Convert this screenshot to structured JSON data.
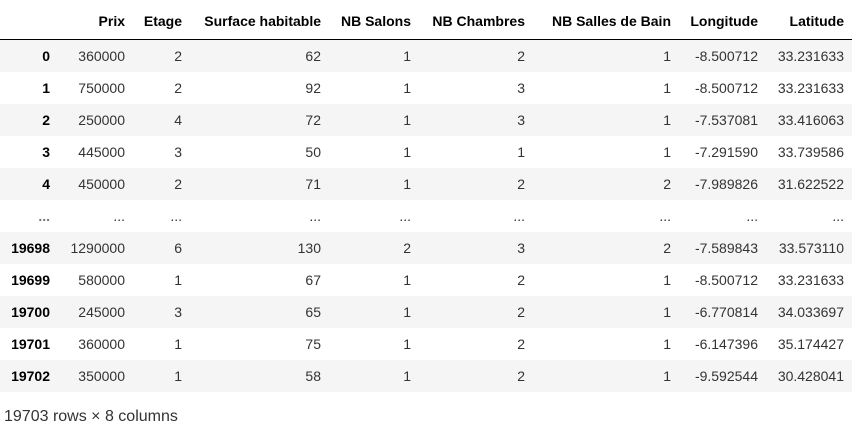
{
  "table": {
    "columns": [
      "",
      "Prix",
      "Etage",
      "Surface habitable",
      "NB Salons",
      "NB Chambres",
      "NB Salles de Bain",
      "Longitude",
      "Latitude"
    ],
    "rows": [
      [
        "0",
        "360000",
        "2",
        "62",
        "1",
        "2",
        "1",
        "-8.500712",
        "33.231633"
      ],
      [
        "1",
        "750000",
        "2",
        "92",
        "1",
        "3",
        "1",
        "-8.500712",
        "33.231633"
      ],
      [
        "2",
        "250000",
        "4",
        "72",
        "1",
        "3",
        "1",
        "-7.537081",
        "33.416063"
      ],
      [
        "3",
        "445000",
        "3",
        "50",
        "1",
        "1",
        "1",
        "-7.291590",
        "33.739586"
      ],
      [
        "4",
        "450000",
        "2",
        "71",
        "1",
        "2",
        "2",
        "-7.989826",
        "31.622522"
      ],
      [
        "...",
        "...",
        "...",
        "...",
        "...",
        "...",
        "...",
        "...",
        "..."
      ],
      [
        "19698",
        "1290000",
        "6",
        "130",
        "2",
        "3",
        "2",
        "-7.589843",
        "33.573110"
      ],
      [
        "19699",
        "580000",
        "1",
        "67",
        "1",
        "2",
        "1",
        "-8.500712",
        "33.231633"
      ],
      [
        "19700",
        "245000",
        "3",
        "65",
        "1",
        "2",
        "1",
        "-6.770814",
        "34.033697"
      ],
      [
        "19701",
        "360000",
        "1",
        "75",
        "1",
        "2",
        "1",
        "-6.147396",
        "35.174427"
      ],
      [
        "19702",
        "350000",
        "1",
        "58",
        "1",
        "2",
        "1",
        "-9.592544",
        "30.428041"
      ]
    ]
  },
  "footer": {
    "shape_text": "19703 rows × 8 columns"
  }
}
